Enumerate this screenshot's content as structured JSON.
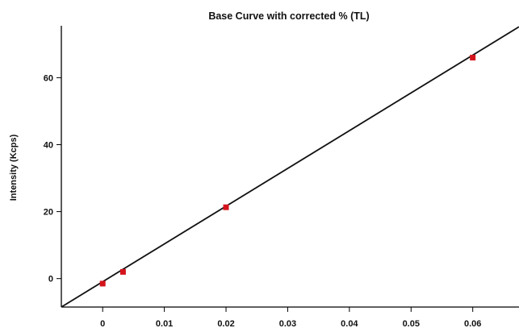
{
  "chart_data": {
    "type": "scatter",
    "title": "Base Curve with corrected % (TL)",
    "xlabel": "",
    "ylabel": "Intensity (Kcps)",
    "xlim": [
      -0.0067,
      0.0675
    ],
    "ylim": [
      -8.5,
      75.5
    ],
    "x_ticks": [
      0,
      0.01,
      0.02,
      0.03,
      0.04,
      0.05,
      0.06
    ],
    "x_tick_labels": [
      "0",
      "0.01",
      "0.02",
      "0.03",
      "0.04",
      "0.05",
      "0.06"
    ],
    "y_ticks": [
      0,
      20,
      40,
      60
    ],
    "y_tick_labels": [
      "0",
      "20",
      "40",
      "60"
    ],
    "grid": false,
    "series": [
      {
        "type": "scatter",
        "color": "#d4141c",
        "x": [
          0,
          0.0033,
          0.02,
          0.06
        ],
        "y": [
          -1.5,
          2.0,
          21.3,
          66.0
        ]
      }
    ],
    "fit_line": {
      "color": "#111111",
      "x": [
        -0.0067,
        0.0675
      ],
      "y": [
        -8.5,
        75.2
      ]
    }
  }
}
